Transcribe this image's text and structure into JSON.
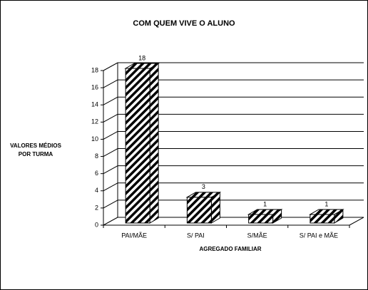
{
  "chart_data": {
    "type": "bar3d",
    "title": "COM QUEM VIVE O ALUNO",
    "ylabel": [
      "VALORES MÉDIOS",
      "POR TURMA"
    ],
    "xlabel": "AGREGADO FAMILIAR",
    "categories": [
      "PAI/MÃE",
      "S/ PAI",
      "S/MÃE",
      "S/ PAI e MÃE"
    ],
    "values": [
      18,
      3,
      1,
      1
    ],
    "color": "#000000",
    "ylim": [
      0,
      18
    ],
    "yticks": [
      0,
      2,
      4,
      6,
      8,
      10,
      12,
      14,
      16,
      18
    ],
    "grid": true
  }
}
